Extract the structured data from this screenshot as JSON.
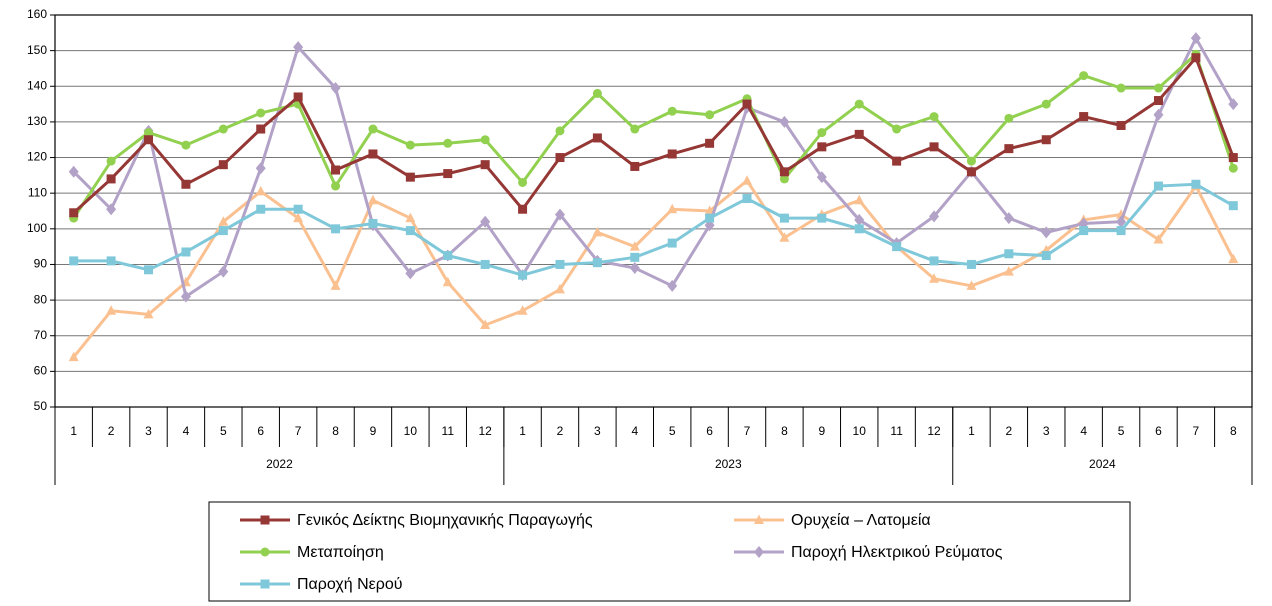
{
  "chart_data": {
    "type": "line",
    "groups": [
      {
        "name": "2022",
        "categories": [
          "1",
          "2",
          "3",
          "4",
          "5",
          "6",
          "7",
          "8",
          "9",
          "10",
          "11",
          "12"
        ]
      },
      {
        "name": "2023",
        "categories": [
          "1",
          "2",
          "3",
          "4",
          "5",
          "6",
          "7",
          "8",
          "9",
          "10",
          "11",
          "12"
        ]
      },
      {
        "name": "2024",
        "categories": [
          "1",
          "2",
          "3",
          "4",
          "5",
          "6",
          "7",
          "8"
        ]
      }
    ],
    "ylim": [
      50,
      160
    ],
    "yticks": [
      50,
      60,
      70,
      80,
      90,
      100,
      110,
      120,
      130,
      140,
      150,
      160
    ],
    "grid": true,
    "series": [
      {
        "name": "Γενικός Δείκτης Βιομηχανικής Παραγωγής",
        "color": "#953735",
        "marker": "square",
        "values": [
          104.5,
          114,
          125,
          112.5,
          118,
          128,
          137,
          116.5,
          121,
          114.5,
          115.5,
          118,
          105.5,
          120,
          125.5,
          117.5,
          121,
          124,
          135,
          116,
          123,
          126.5,
          119,
          123,
          116,
          122.5,
          125,
          131.5,
          129,
          136,
          148,
          120
        ]
      },
      {
        "name": "Ορυχεία – Λατομεία",
        "color": "#fac090",
        "marker": "triangle",
        "values": [
          64,
          77,
          76,
          85,
          102,
          110.5,
          103,
          84,
          108,
          103,
          85,
          73,
          77,
          83,
          99,
          95,
          105.5,
          105,
          113.5,
          97.5,
          104,
          108,
          95,
          86,
          84,
          88,
          94,
          102.5,
          104,
          97,
          112,
          91.5
        ]
      },
      {
        "name": "Μεταποίηση",
        "color": "#92d050",
        "marker": "circle",
        "values": [
          103,
          119,
          127,
          123.5,
          128,
          132.5,
          135,
          112,
          128,
          123.5,
          124,
          125,
          113,
          127.5,
          138,
          128,
          133,
          132,
          136.5,
          114,
          127,
          135,
          128,
          131.5,
          119,
          131,
          135,
          143,
          139.5,
          139.5,
          149,
          117
        ]
      },
      {
        "name": "Παροχή Ηλεκτρικού Ρεύματος",
        "color": "#b3a2c7",
        "marker": "diamond",
        "values": [
          116,
          105.5,
          127.5,
          81,
          88,
          117,
          151,
          139.5,
          101,
          87.5,
          92.5,
          102,
          87,
          104,
          91,
          89,
          84,
          101,
          134,
          130,
          114.5,
          102.5,
          96,
          103.5,
          116,
          103,
          99,
          101.5,
          102,
          132,
          153.5,
          135
        ]
      },
      {
        "name": "Παροχή Νερού",
        "color": "#7fc8da",
        "marker": "square",
        "values": [
          91,
          91,
          88.5,
          93.5,
          99.5,
          105.5,
          105.5,
          100,
          101.5,
          99.5,
          92.5,
          90,
          87,
          90,
          90.5,
          92,
          96,
          103,
          108.5,
          103,
          103,
          100,
          95,
          91,
          90,
          93,
          92.5,
          99.5,
          99.5,
          112,
          112.5,
          106.5
        ]
      }
    ]
  }
}
